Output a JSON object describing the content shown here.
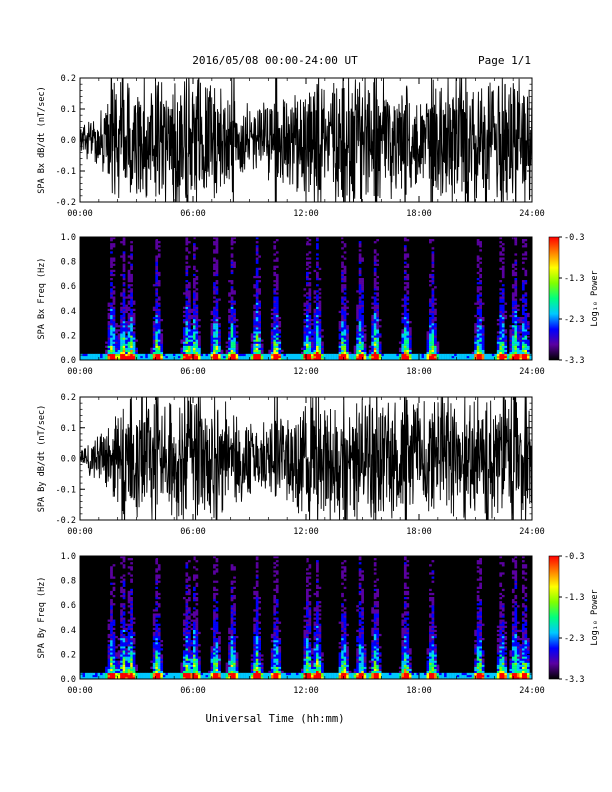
{
  "header": {
    "title": "2016/05/08  00:00-24:00 UT",
    "page": "Page 1/1"
  },
  "colors": {
    "background": "#ffffff",
    "trace": "#000000",
    "spectrogram_background": "#000000",
    "colormap": [
      "#000000",
      "#5a00a0",
      "#0000ff",
      "#00c8ff",
      "#00ff80",
      "#80ff00",
      "#ffff00",
      "#ff8000",
      "#ff0000"
    ]
  },
  "chart_data": [
    {
      "type": "line",
      "ylabel": "SPA Bx dB/dt (nT/sec)",
      "xlim": [
        "00:00",
        "24:00"
      ],
      "ylim": [
        -0.2,
        0.2
      ],
      "yticks": [
        "-0.2",
        "-0.1",
        "0.0",
        "0.1",
        "0.2"
      ],
      "xticks": [
        "00:00",
        "06:00",
        "12:00",
        "18:00",
        "24:00"
      ],
      "envelope_hours": [
        0,
        1,
        2,
        3,
        4,
        5,
        6,
        7,
        8,
        9,
        10,
        11,
        12,
        13,
        14,
        15,
        16,
        17,
        18,
        19,
        20,
        21,
        22,
        23,
        24
      ],
      "envelope_amplitude": [
        0.04,
        0.09,
        0.2,
        0.2,
        0.2,
        0.2,
        0.2,
        0.2,
        0.13,
        0.1,
        0.12,
        0.14,
        0.2,
        0.2,
        0.2,
        0.2,
        0.2,
        0.16,
        0.14,
        0.18,
        0.2,
        0.2,
        0.2,
        0.2,
        0.2
      ],
      "spikes_hours": [
        1.7,
        2.3,
        4.1,
        5.7,
        6.3,
        7.2,
        8.1,
        10.4,
        12.6,
        14.0,
        14.9,
        15.7,
        17.3,
        18.7,
        20.5,
        21.6,
        22.4,
        23.1,
        23.6
      ]
    },
    {
      "type": "heatmap",
      "ylabel": "SPA Bx Freq (Hz)",
      "xlim": [
        "00:00",
        "24:00"
      ],
      "ylim": [
        0.0,
        1.0
      ],
      "yticks": [
        "0.0",
        "0.2",
        "0.4",
        "0.6",
        "0.8",
        "1.0"
      ],
      "xticks": [
        "00:00",
        "06:00",
        "12:00",
        "18:00",
        "24:00"
      ],
      "colorbar": {
        "label": "Log₁₀ Power",
        "range": [
          -3.3,
          -0.3
        ],
        "ticks": [
          "-0.3",
          "-1.3",
          "-2.3",
          "-3.3"
        ]
      },
      "event_hours": [
        1.7,
        2.3,
        2.7,
        4.1,
        5.7,
        6.1,
        7.2,
        8.1,
        9.4,
        10.4,
        12.1,
        12.6,
        14.0,
        14.9,
        15.7,
        17.3,
        18.7,
        21.2,
        22.4,
        23.1,
        23.6
      ]
    },
    {
      "type": "line",
      "ylabel": "SPA By dB/dt (nT/sec)",
      "xlim": [
        "00:00",
        "24:00"
      ],
      "ylim": [
        -0.2,
        0.2
      ],
      "yticks": [
        "-0.2",
        "-0.1",
        "0.0",
        "0.1",
        "0.2"
      ],
      "xticks": [
        "00:00",
        "06:00",
        "12:00",
        "18:00",
        "24:00"
      ],
      "envelope_hours": [
        0,
        1,
        2,
        3,
        4,
        5,
        6,
        7,
        8,
        9,
        10,
        11,
        12,
        13,
        14,
        15,
        16,
        17,
        18,
        19,
        20,
        21,
        22,
        23,
        24
      ],
      "envelope_amplitude": [
        0.03,
        0.07,
        0.14,
        0.2,
        0.2,
        0.2,
        0.2,
        0.2,
        0.15,
        0.12,
        0.1,
        0.13,
        0.2,
        0.2,
        0.2,
        0.2,
        0.2,
        0.18,
        0.17,
        0.2,
        0.2,
        0.2,
        0.2,
        0.2,
        0.2
      ],
      "spikes_hours": [
        2.3,
        4.1,
        5.7,
        6.3,
        7.2,
        10.4,
        12.6,
        14.0,
        15.7,
        17.3,
        20.5,
        21.6,
        22.4,
        23.1,
        23.6
      ]
    },
    {
      "type": "heatmap",
      "ylabel": "SPA By Freq (Hz)",
      "xlim": [
        "00:00",
        "24:00"
      ],
      "ylim": [
        0.0,
        1.0
      ],
      "yticks": [
        "0.0",
        "0.2",
        "0.4",
        "0.6",
        "0.8",
        "1.0"
      ],
      "xticks": [
        "00:00",
        "06:00",
        "12:00",
        "18:00",
        "24:00"
      ],
      "colorbar": {
        "label": "Log₁₀ Power",
        "range": [
          -3.3,
          -0.3
        ],
        "ticks": [
          "-0.3",
          "-1.3",
          "-2.3",
          "-3.3"
        ]
      },
      "event_hours": [
        1.7,
        2.3,
        2.7,
        4.1,
        5.7,
        6.1,
        7.2,
        8.1,
        9.4,
        10.4,
        12.1,
        12.6,
        14.0,
        14.9,
        15.7,
        17.3,
        18.7,
        21.2,
        22.4,
        23.1,
        23.6
      ]
    }
  ],
  "xaxis_label": "Universal Time (hh:mm)"
}
